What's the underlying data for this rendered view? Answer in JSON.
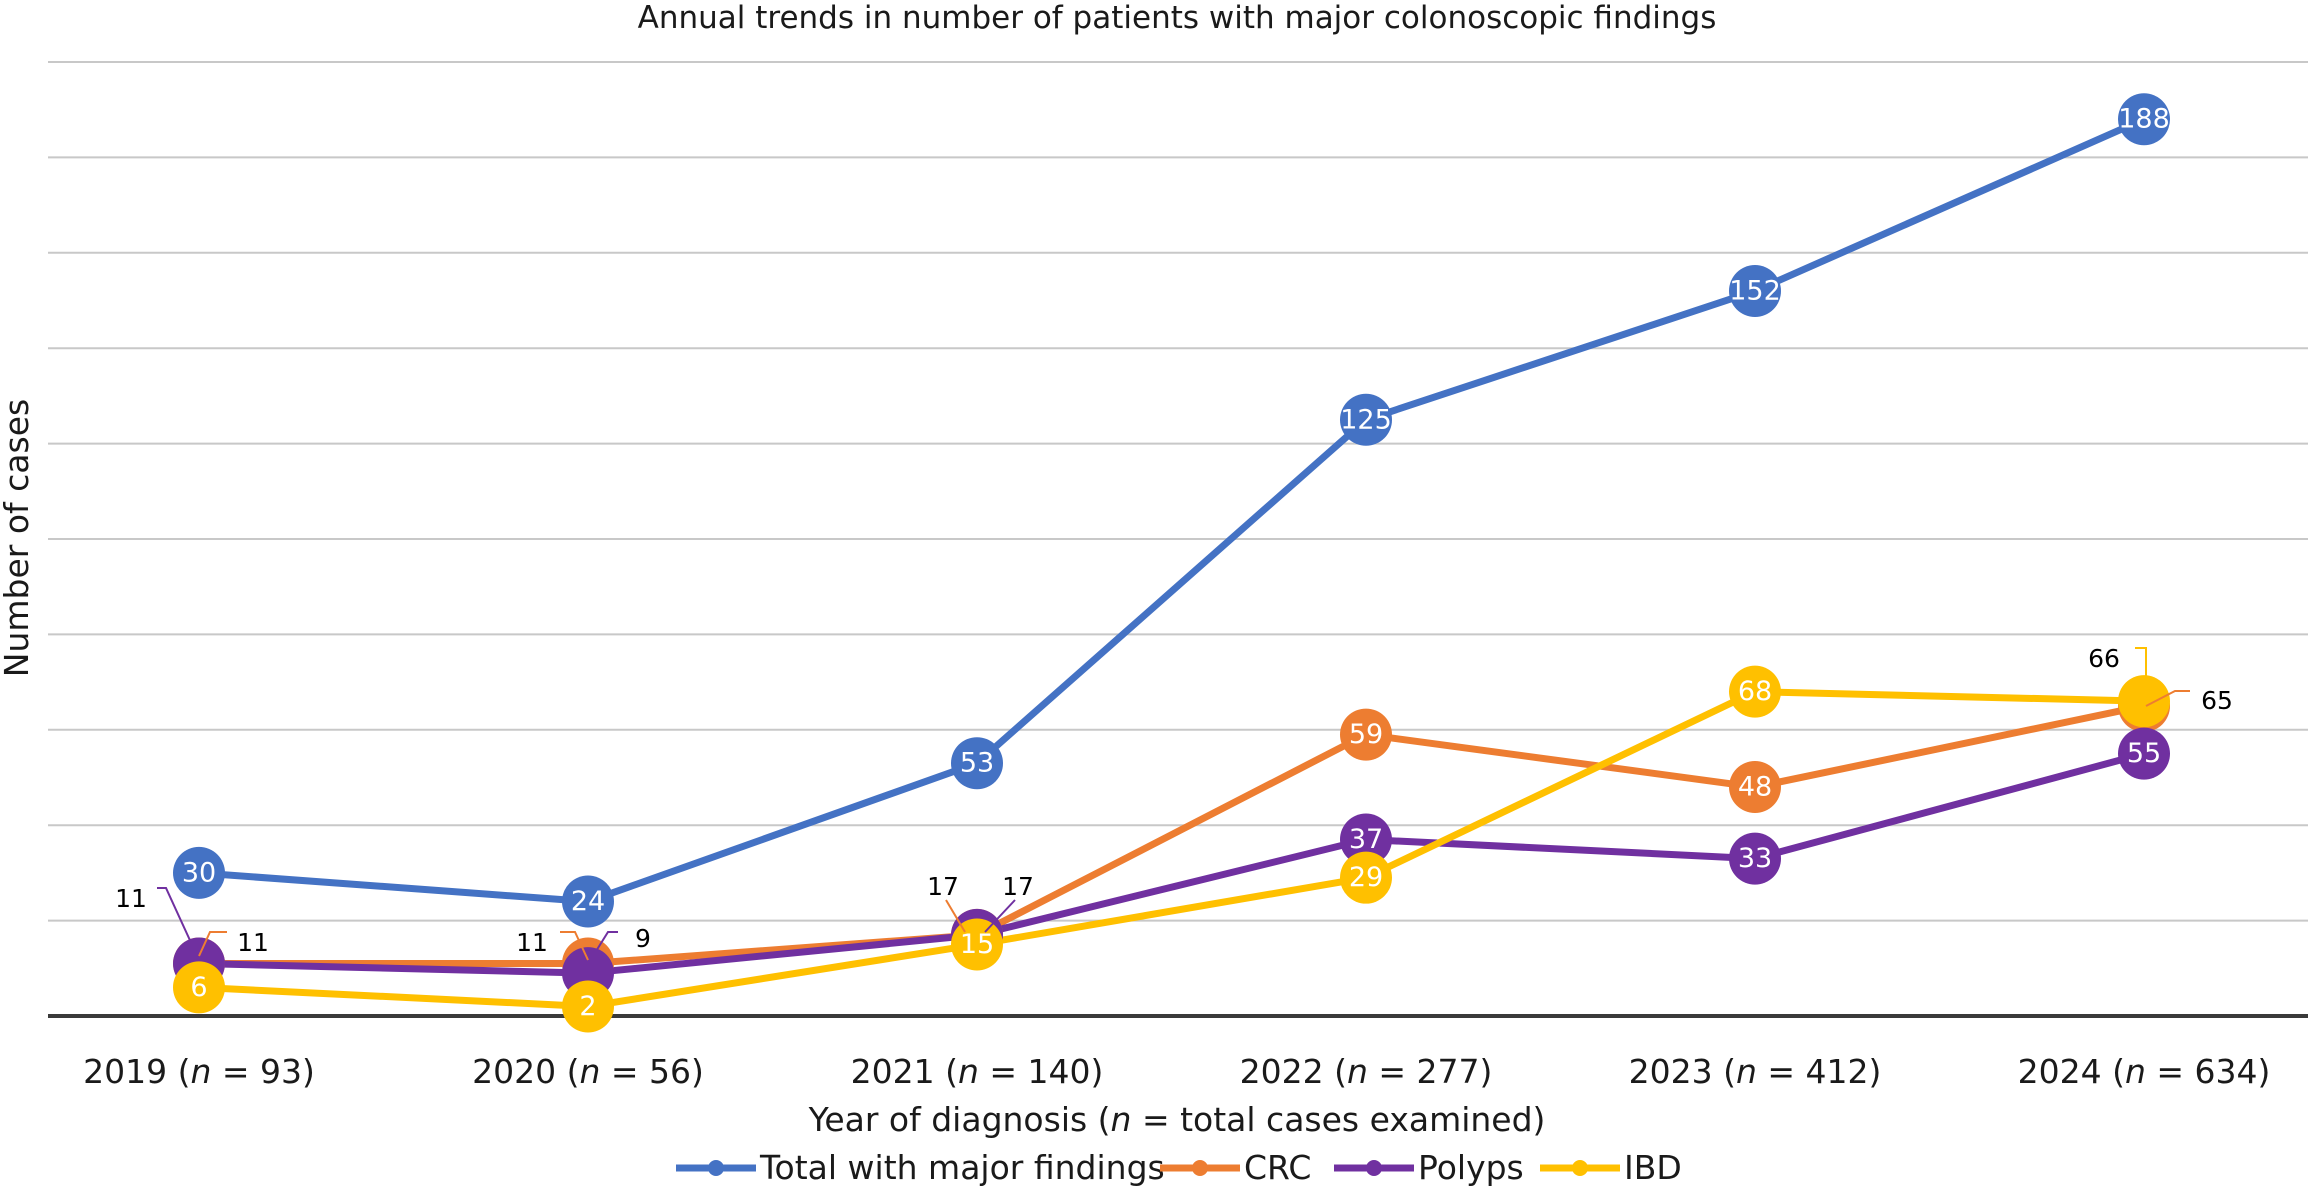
{
  "chart_data": {
    "type": "line",
    "title": "Annual trends in number of patients with major colonoscopic findings",
    "xlabel": "Year of diagnosis (n = total cases examined)",
    "xlabel_parts": [
      "Year of diagnosis (",
      "n",
      " = total cases examined)"
    ],
    "ylabel": "Number of cases",
    "categories": [
      {
        "year": "2019",
        "n": "93"
      },
      {
        "year": "2020",
        "n": "56"
      },
      {
        "year": "2021",
        "n": "140"
      },
      {
        "year": "2022",
        "n": "277"
      },
      {
        "year": "2023",
        "n": "412"
      },
      {
        "year": "2024",
        "n": "634"
      }
    ],
    "ylim": [
      0,
      200
    ],
    "grid": true,
    "y_tick_labels_shown": false,
    "legend_position": "bottom",
    "series": [
      {
        "name": "Total with major findings",
        "color": "#4472C4",
        "values": [
          30,
          24,
          53,
          125,
          152,
          188
        ]
      },
      {
        "name": "CRC",
        "color": "#ED7D31",
        "values": [
          11,
          11,
          17,
          59,
          48,
          65
        ]
      },
      {
        "name": "Polyps",
        "color": "#7030A0",
        "values": [
          11,
          9,
          17,
          37,
          33,
          55
        ]
      },
      {
        "name": "IBD",
        "color": "#FFC000",
        "values": [
          6,
          2,
          15,
          29,
          68,
          66
        ]
      }
    ]
  }
}
